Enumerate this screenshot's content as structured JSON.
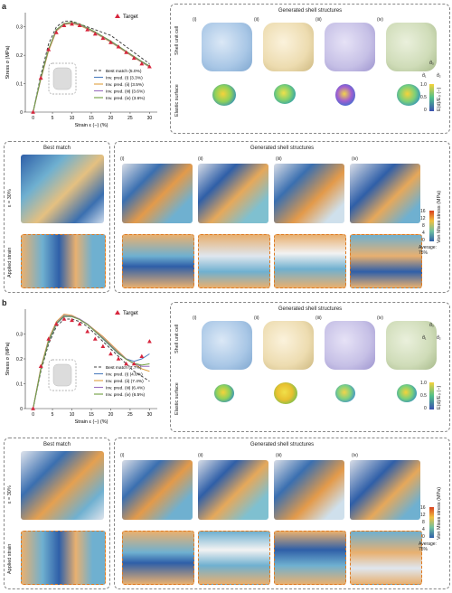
{
  "panels": [
    {
      "letter": "a",
      "target_label": "Target",
      "xlabel": "Strain ε (−) (%)",
      "ylabel": "Stress σ (MPa)",
      "legend": [
        "Best match (5.0%)",
        "Inv. pred. (i) (3.3%)",
        "Inv. pred. (ii) (3.5%)",
        "Inv. pred. (iii) (3.6%)",
        "Inv. pred. (iv) (3.6%)"
      ],
      "shell_title": "Generated shell structures",
      "shell_row_labels": [
        "Shell unit cell",
        "Elastic surface"
      ],
      "colorbar_label": "E(d)/E₀ (−)",
      "colorbar_ticks": [
        "1.0",
        "0.5",
        "0"
      ],
      "bottom_left_title": "Best match",
      "bottom_right_title": "Generated shell structures",
      "bottom_side_labels": [
        "ε = 30%",
        "Applied strain"
      ],
      "stress_colorbar_label": "Von Mises stress (MPa)",
      "stress_ticks": [
        "16",
        "12",
        "8",
        "4",
        "0"
      ],
      "average_label": "Average: 75%"
    },
    {
      "letter": "b",
      "target_label": "Target",
      "xlabel": "Strain ε (−) (%)",
      "ylabel": "Stress σ (MPa)",
      "legend": [
        "Best match (7.7%)",
        "Inv. pred. (i) (4.6%)",
        "Inv. pred. (ii) (7.4%)",
        "Inv. pred. (iii) (6.4%)",
        "Inv. pred. (iv) (6.5%)"
      ],
      "shell_title": "Generated shell structures",
      "shell_row_labels": [
        "Shell unit cell",
        "Elastic surface"
      ],
      "colorbar_label": "E(d)/E₀ (−)",
      "colorbar_ticks": [
        "1.0",
        "0.5",
        "0"
      ],
      "bottom_left_title": "Best match",
      "bottom_right_title": "Generated shell structures",
      "bottom_side_labels": [
        "ε = 30%",
        "Applied strain"
      ],
      "stress_colorbar_label": "Von Mises stress (MPa)",
      "stress_ticks": [
        "16",
        "12",
        "8",
        "4",
        "0"
      ],
      "average_label": "Average: 75%"
    }
  ],
  "roman": [
    "(i)",
    "(ii)",
    "(iii)",
    "(iv)"
  ],
  "axis_labels": [
    "d̂₁",
    "d̂₂",
    "d̂₃"
  ],
  "colors": {
    "target": "#d7263d",
    "best": "#444444",
    "i": "#4f7fbf",
    "ii": "#e0a040",
    "iii": "#9b6fc0",
    "iv": "#6f9e3e",
    "unit_i": "#a9c7e6",
    "unit_ii": "#eddcb0",
    "unit_iii": "#c6c0e6",
    "unit_iv": "#cfdcb8"
  },
  "chart_data": [
    {
      "type": "line",
      "xlim": [
        -2,
        32
      ],
      "ylim": [
        0,
        0.35
      ],
      "xticks": [
        0,
        5,
        10,
        15,
        20,
        25,
        30
      ],
      "yticks": [
        0,
        0.1,
        0.2,
        0.3
      ],
      "target": {
        "x": [
          0,
          2,
          4,
          6,
          8,
          10,
          12,
          14,
          16,
          18,
          20,
          22,
          24,
          26,
          28,
          30
        ],
        "y": [
          0,
          0.12,
          0.22,
          0.28,
          0.305,
          0.31,
          0.305,
          0.29,
          0.275,
          0.26,
          0.245,
          0.23,
          0.21,
          0.19,
          0.17,
          0.16
        ]
      },
      "series": [
        {
          "name": "Best match (5.0%)",
          "dashed": true,
          "y": [
            0,
            0.13,
            0.24,
            0.3,
            0.32,
            0.32,
            0.31,
            0.3,
            0.29,
            0.28,
            0.27,
            0.25,
            0.23,
            0.21,
            0.19,
            0.17
          ]
        },
        {
          "name": "Inv. pred. (i) (3.3%)",
          "y": [
            0,
            0.12,
            0.22,
            0.29,
            0.31,
            0.315,
            0.31,
            0.295,
            0.28,
            0.265,
            0.25,
            0.232,
            0.212,
            0.195,
            0.178,
            0.162
          ]
        },
        {
          "name": "Inv. pred. (ii) (3.5%)",
          "y": [
            0,
            0.115,
            0.215,
            0.285,
            0.308,
            0.312,
            0.305,
            0.292,
            0.278,
            0.262,
            0.246,
            0.228,
            0.21,
            0.192,
            0.175,
            0.158
          ]
        },
        {
          "name": "Inv. pred. (iii) (3.6%)",
          "y": [
            0,
            0.118,
            0.22,
            0.288,
            0.31,
            0.314,
            0.308,
            0.294,
            0.28,
            0.264,
            0.248,
            0.23,
            0.212,
            0.194,
            0.176,
            0.16
          ]
        },
        {
          "name": "Inv. pred. (iv) (3.6%)",
          "y": [
            0,
            0.12,
            0.222,
            0.29,
            0.312,
            0.316,
            0.31,
            0.296,
            0.282,
            0.266,
            0.25,
            0.232,
            0.214,
            0.196,
            0.178,
            0.162
          ]
        }
      ]
    },
    {
      "type": "line",
      "xlim": [
        -2,
        32
      ],
      "ylim": [
        0,
        0.4
      ],
      "xticks": [
        0,
        5,
        10,
        15,
        20,
        25,
        30
      ],
      "yticks": [
        0,
        0.1,
        0.2,
        0.3
      ],
      "target": {
        "x": [
          0,
          2,
          4,
          6,
          8,
          10,
          12,
          14,
          16,
          18,
          20,
          22,
          24,
          26,
          28,
          30
        ],
        "y": [
          0,
          0.17,
          0.28,
          0.34,
          0.36,
          0.355,
          0.34,
          0.31,
          0.28,
          0.25,
          0.22,
          0.2,
          0.18,
          0.18,
          0.21,
          0.27
        ]
      },
      "series": [
        {
          "name": "Best match (7.7%)",
          "dashed": true,
          "y": [
            0,
            0.15,
            0.26,
            0.33,
            0.36,
            0.36,
            0.35,
            0.33,
            0.3,
            0.27,
            0.24,
            0.21,
            0.18,
            0.15,
            0.13,
            0.11
          ]
        },
        {
          "name": "Inv. pred. (i) (4.6%)",
          "y": [
            0,
            0.16,
            0.27,
            0.34,
            0.37,
            0.37,
            0.36,
            0.34,
            0.31,
            0.28,
            0.25,
            0.22,
            0.2,
            0.19,
            0.2,
            0.22
          ]
        },
        {
          "name": "Inv. pred. (ii) (7.4%)",
          "y": [
            0,
            0.165,
            0.28,
            0.35,
            0.38,
            0.375,
            0.36,
            0.34,
            0.315,
            0.29,
            0.26,
            0.23,
            0.2,
            0.18,
            0.16,
            0.15
          ]
        },
        {
          "name": "Inv. pred. (iii) (6.4%)",
          "y": [
            0,
            0.16,
            0.275,
            0.345,
            0.375,
            0.372,
            0.36,
            0.34,
            0.312,
            0.285,
            0.255,
            0.225,
            0.2,
            0.18,
            0.17,
            0.17
          ]
        },
        {
          "name": "Inv. pred. (iv) (6.5%)",
          "y": [
            0,
            0.158,
            0.272,
            0.342,
            0.372,
            0.37,
            0.358,
            0.338,
            0.31,
            0.282,
            0.252,
            0.222,
            0.198,
            0.182,
            0.175,
            0.18
          ]
        }
      ]
    }
  ]
}
